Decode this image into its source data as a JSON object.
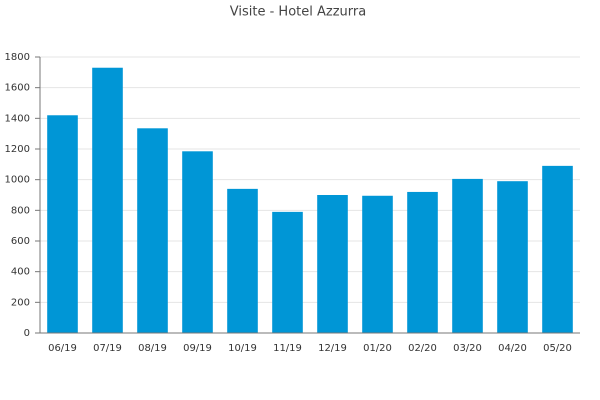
{
  "chart_data": {
    "type": "bar",
    "title": "Visite - Hotel Azzurra",
    "categories": [
      "06/19",
      "07/19",
      "08/19",
      "09/19",
      "10/19",
      "11/19",
      "12/19",
      "01/20",
      "02/20",
      "03/20",
      "04/20",
      "05/20"
    ],
    "values": [
      1420,
      1730,
      1335,
      1185,
      940,
      790,
      900,
      895,
      920,
      1005,
      990,
      1090
    ],
    "color": "#0096d6",
    "ylim": [
      0,
      1800
    ],
    "yticks": [
      0,
      200,
      400,
      600,
      800,
      1000,
      1200,
      1400,
      1600,
      1800
    ],
    "grid": true
  }
}
